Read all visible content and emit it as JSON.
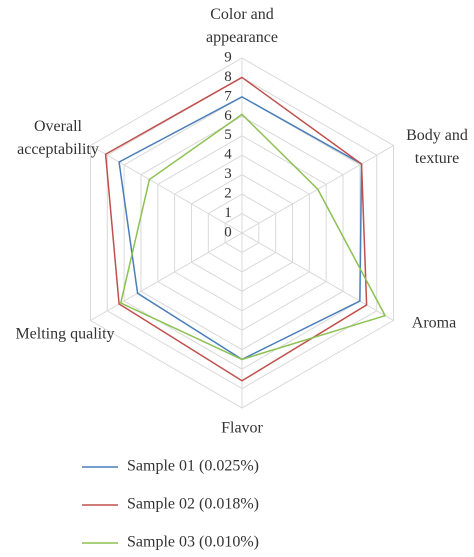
{
  "chart_data": {
    "type": "radar",
    "categories": [
      "Color and appearance",
      "Body and texture",
      "Aroma",
      "Flavor",
      "Melting quality",
      "Overall acceptability"
    ],
    "series": [
      {
        "name": "Sample 01 (0.025%)",
        "color": "#4a7ebb",
        "values": [
          7.0,
          7.1,
          7.0,
          6.5,
          6.2,
          7.3
        ]
      },
      {
        "name": "Sample 02 (0.018%)",
        "color": "#c0504d",
        "values": [
          8.0,
          7.1,
          7.4,
          7.6,
          7.3,
          8.1
        ]
      },
      {
        "name": "Sample 03 (0.010%)",
        "color": "#8cc152",
        "values": [
          6.1,
          4.5,
          8.5,
          6.5,
          7.2,
          5.5
        ]
      }
    ],
    "rlim": [
      0,
      9
    ],
    "rticks": [
      0,
      1,
      2,
      3,
      4,
      5,
      6,
      7,
      8,
      9
    ],
    "grid": true,
    "legend": "bottom"
  }
}
